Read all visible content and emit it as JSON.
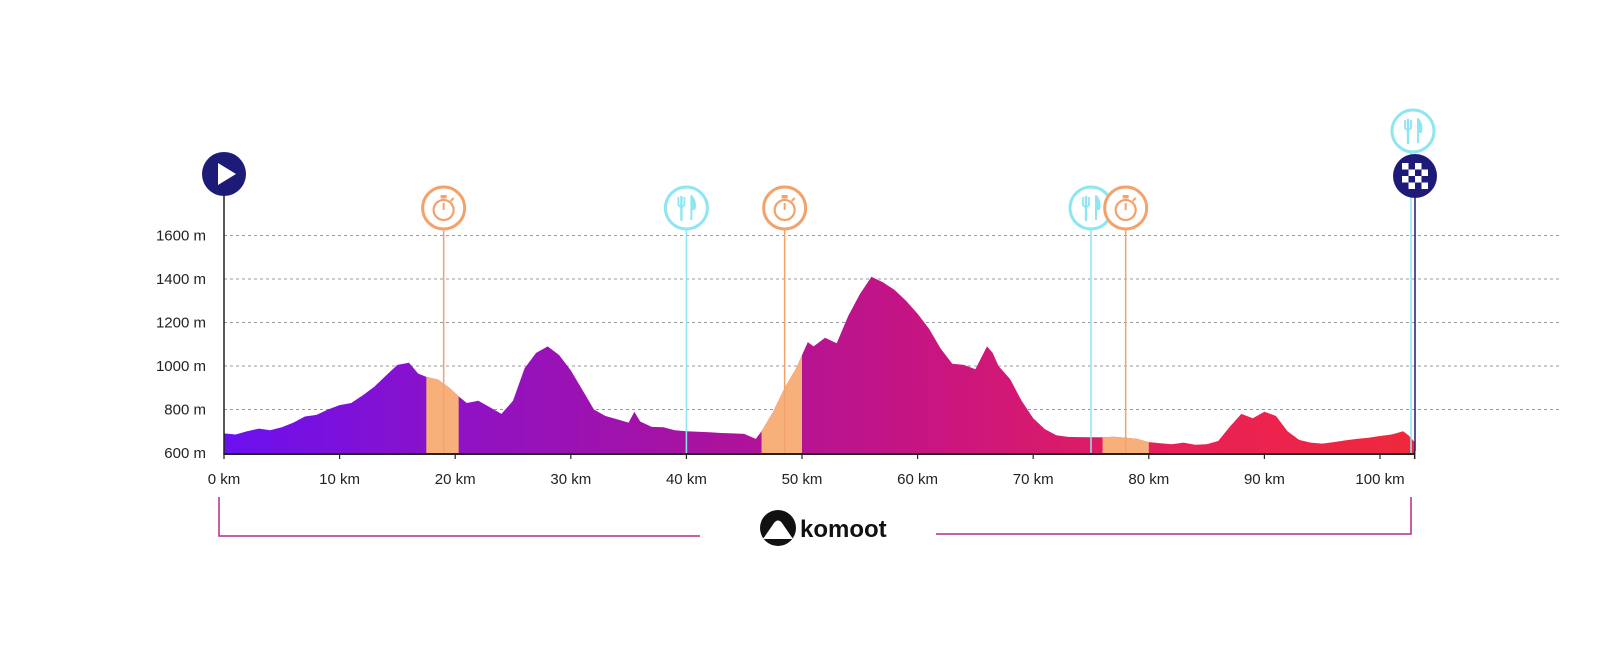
{
  "chart_data": {
    "type": "area",
    "title": "",
    "xlabel": "",
    "ylabel": "",
    "xlim": [
      0,
      103
    ],
    "ylim": [
      600,
      1700
    ],
    "x_ticks": [
      0,
      10,
      20,
      30,
      40,
      50,
      60,
      70,
      80,
      90,
      100
    ],
    "x_tick_labels": [
      "0 km",
      "10 km",
      "20 km",
      "30 km",
      "40 km",
      "50 km",
      "60 km",
      "70 km",
      "80 km",
      "90 km",
      "100 km"
    ],
    "y_ticks": [
      600,
      800,
      1000,
      1200,
      1400,
      1600
    ],
    "y_tick_labels": [
      "600 m",
      "800 m",
      "1000 m",
      "1200 m",
      "1400 m",
      "1600 m"
    ],
    "grid": true,
    "gradient_colors": [
      "#6a10f0",
      "#8f12c4",
      "#a812a0",
      "#c91580",
      "#e82058",
      "#f0283c"
    ],
    "segment_color": "#f8b07a",
    "marker_colors": {
      "start": "#1e1a78",
      "finish": "#1e1a78",
      "timing": "#f4a26c",
      "food": "#8ee6f0"
    },
    "profile": {
      "x": [
        0,
        1,
        2,
        3,
        4,
        5,
        6,
        7,
        8,
        9,
        10,
        11,
        12,
        13,
        14,
        15,
        16,
        16.8,
        17.5,
        18.5,
        19.5,
        20.3,
        21,
        22,
        23,
        24,
        25,
        26,
        27,
        28,
        29,
        30,
        31,
        32,
        33,
        34,
        35,
        35.5,
        36,
        37,
        38,
        39,
        40,
        41,
        42,
        43,
        44,
        45,
        46,
        46.5,
        47.5,
        48.5,
        49.5,
        50,
        50.5,
        51,
        52,
        53,
        54,
        55,
        56,
        57,
        58,
        59,
        60,
        61,
        62,
        63,
        64,
        65,
        66,
        66.5,
        67,
        68,
        69,
        70,
        71,
        72,
        73,
        74,
        75,
        76,
        77,
        78,
        79,
        80,
        81,
        82,
        83,
        84,
        85,
        86,
        87,
        88,
        89,
        90,
        91,
        92,
        93,
        94,
        95,
        96,
        97,
        98,
        99,
        100,
        101,
        102,
        102.5,
        103
      ],
      "y": [
        690,
        685,
        700,
        712,
        705,
        718,
        740,
        768,
        775,
        800,
        820,
        830,
        865,
        905,
        955,
        1005,
        1015,
        965,
        950,
        938,
        900,
        860,
        830,
        840,
        810,
        780,
        840,
        990,
        1060,
        1090,
        1050,
        980,
        890,
        800,
        770,
        755,
        740,
        790,
        745,
        720,
        718,
        705,
        700,
        698,
        695,
        692,
        690,
        688,
        665,
        700,
        790,
        900,
        990,
        1050,
        1110,
        1090,
        1130,
        1105,
        1230,
        1330,
        1410,
        1385,
        1350,
        1300,
        1240,
        1170,
        1080,
        1010,
        1005,
        985,
        1090,
        1060,
        1000,
        940,
        840,
        760,
        710,
        682,
        674,
        673,
        672,
        672,
        675,
        670,
        665,
        650,
        645,
        640,
        648,
        638,
        640,
        655,
        720,
        780,
        760,
        790,
        770,
        700,
        660,
        648,
        643,
        650,
        658,
        665,
        670,
        678,
        685,
        700,
        680,
        650
      ]
    },
    "highlighted_segments": [
      [
        17.5,
        20.3
      ],
      [
        46.5,
        50
      ],
      [
        76,
        80
      ]
    ],
    "markers": [
      {
        "type": "start",
        "icon": "play-icon",
        "x": 0
      },
      {
        "type": "timing",
        "icon": "stopwatch-icon",
        "x": 19
      },
      {
        "type": "food",
        "icon": "fork-knife-icon",
        "x": 40
      },
      {
        "type": "timing",
        "icon": "stopwatch-icon",
        "x": 48.5
      },
      {
        "type": "food",
        "icon": "fork-knife-icon",
        "x": 75
      },
      {
        "type": "timing",
        "icon": "stopwatch-icon",
        "x": 78
      },
      {
        "type": "food",
        "icon": "fork-knife-icon",
        "x": 103
      },
      {
        "type": "finish",
        "icon": "checkered-flag-icon",
        "x": 103
      }
    ]
  },
  "brand": {
    "name": "komoot",
    "icon": "komoot-logo-icon"
  }
}
